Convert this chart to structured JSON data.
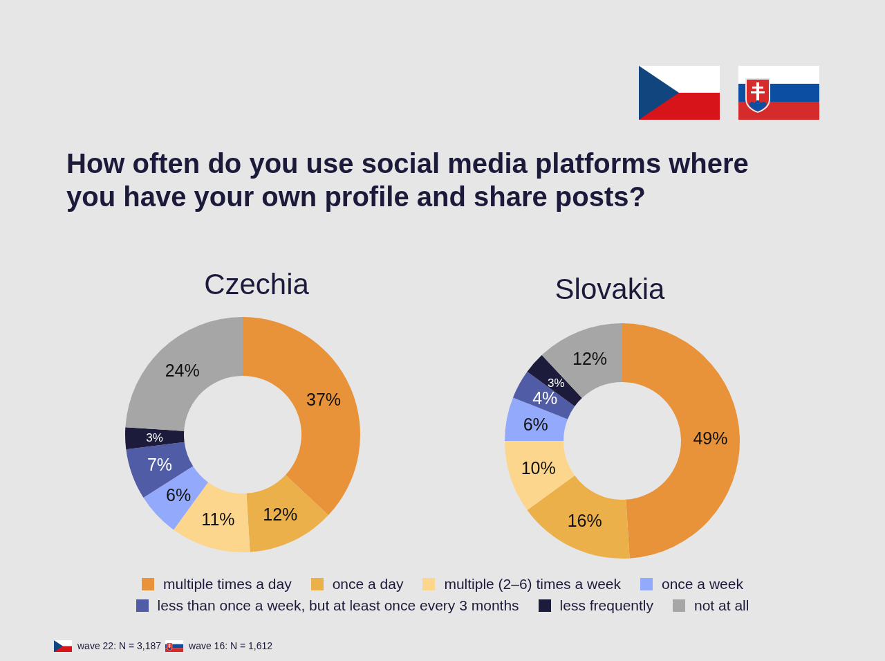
{
  "chart_data": [
    {
      "type": "donut",
      "title": "Czechia",
      "categories": [
        "multiple times a day",
        "once a day",
        "multiple (2–6) times a week",
        "once a week",
        "less than once a week, but at least once every 3 months",
        "less frequently",
        "not at all"
      ],
      "values": [
        37,
        12,
        11,
        6,
        7,
        3,
        24
      ],
      "value_labels": [
        "37%",
        "12%",
        "11%",
        "6%",
        "7%",
        "3%",
        "24%"
      ],
      "colors": [
        "#e8923a",
        "#ecb04a",
        "#fdd68e",
        "#93a9fb",
        "#505ca5",
        "#1c1b3b",
        "#a6a6a6"
      ],
      "legend": "bottom",
      "annotations": [
        "How often do you use social media platforms where you have your own profile and share posts?",
        "wave 22: N = 3,187"
      ]
    },
    {
      "type": "donut",
      "title": "Slovakia",
      "categories": [
        null,
        null,
        null,
        null,
        null,
        null,
        null
      ],
      "values": [
        49,
        16,
        10,
        6,
        4,
        3,
        12
      ],
      "value_labels": [
        "49%",
        "16%",
        "10%",
        "6%",
        "4%",
        "3%",
        "12%"
      ],
      "colors": [
        "#e8923a",
        "#ecb04a",
        "#fdd68e",
        "#93a9fb",
        "#505ca5",
        "#1c1b3b",
        "#a6a6a6"
      ],
      "annotations": [
        "wave 16: N = 1,612"
      ]
    }
  ]
}
